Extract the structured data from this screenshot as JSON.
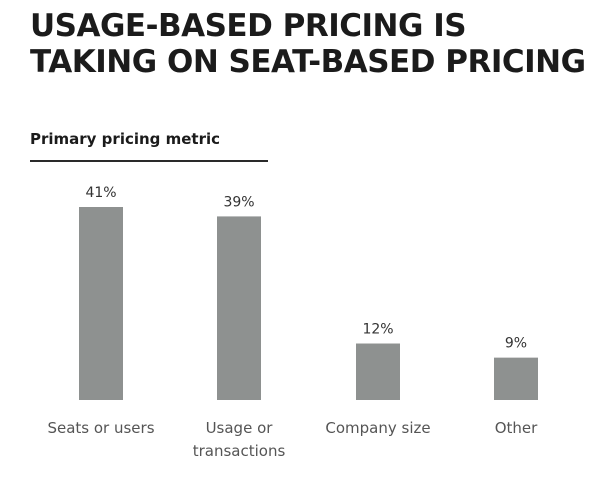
{
  "title_lines": [
    "USAGE-BASED PRICING IS",
    "TAKING ON SEAT-BASED PRICING"
  ],
  "colors": {
    "bar": "#8e9190",
    "text": "#1b1b1b",
    "axis_text": "#555555",
    "rule": "#2a2a2a"
  },
  "chart_data": {
    "type": "bar",
    "title": "USAGE-BASED PRICING IS TAKING ON SEAT-BASED PRICING",
    "subtitle": "Primary pricing metric",
    "categories": [
      [
        "Seats or users"
      ],
      [
        "Usage or",
        "transactions"
      ],
      [
        "Company size"
      ],
      [
        "Other"
      ]
    ],
    "values": [
      41,
      39,
      12,
      9
    ],
    "value_labels": [
      "41%",
      "39%",
      "12%",
      "9%"
    ],
    "ylim": [
      0,
      41
    ],
    "grid": false,
    "legend": "none"
  }
}
